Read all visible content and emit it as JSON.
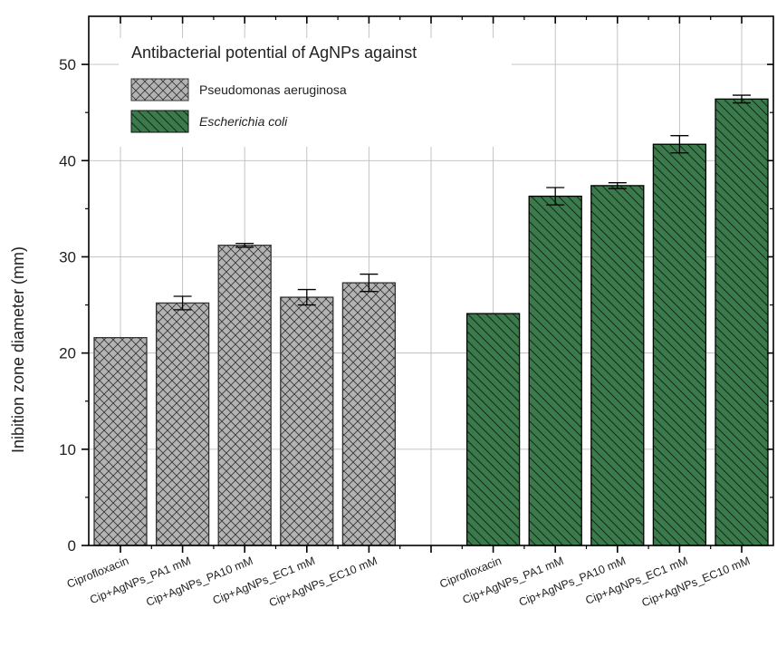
{
  "chart_data": {
    "type": "bar",
    "title": "",
    "ylabel": "Inibition zone diameter (mm)",
    "xlabel": "",
    "ylim": [
      0,
      55
    ],
    "yticks": [
      0,
      10,
      20,
      30,
      40,
      50
    ],
    "grid": true,
    "legend": {
      "title": "Antibacterial potential of AgNPs against",
      "placement": "top-left"
    },
    "series": [
      {
        "name": "Pseudomonas aeruginosa",
        "color": "#b3b3b3",
        "pattern": "crosshatch",
        "categories": [
          "Ciprofloxacin",
          "Cip+AgNPs_PA1 mM",
          "Cip+AgNPs_PA10 mM",
          "Cip+AgNPs_EC1 mM",
          "Cip+AgNPs_EC10 mM"
        ],
        "values": [
          21.6,
          25.2,
          31.2,
          25.8,
          27.3
        ],
        "errors": [
          0,
          0.7,
          0.2,
          0.8,
          0.9
        ]
      },
      {
        "name": "Escherichia coli",
        "color": "#3b7a4b",
        "pattern": "diagonal",
        "categories": [
          "Ciprofloxacin",
          "Cip+AgNPs_PA1 mM",
          "Cip+AgNPs_PA10 mM",
          "Cip+AgNPs_EC1 mM",
          "Cip+AgNPs_EC10 mM"
        ],
        "values": [
          24.1,
          36.3,
          37.4,
          41.7,
          46.4
        ],
        "errors": [
          0,
          0.9,
          0.3,
          0.9,
          0.4
        ]
      }
    ]
  }
}
